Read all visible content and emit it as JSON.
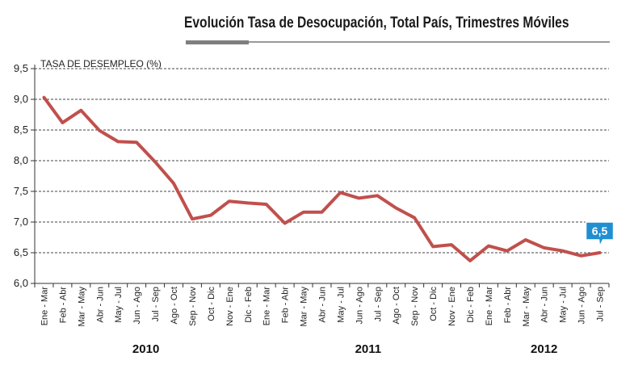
{
  "chart_data": {
    "type": "line",
    "title": "Evolución Tasa de Desocupación, Total País, Trimestres Móviles",
    "ylabel": "TASA DE DESEMPLEO (%)",
    "xlabel": "",
    "ylim": [
      6.0,
      9.5
    ],
    "y_ticks": [
      "6,0",
      "6,5",
      "7,0",
      "7,5",
      "8,0",
      "8,5",
      "9,0",
      "9,5"
    ],
    "grid": "horizontal-dashed",
    "line_color": "#c0504d",
    "accent_color": "#1f8fd1",
    "categories": [
      "Ene - Mar",
      "Feb - Abr",
      "Mar - May",
      "Abr - Jun",
      "May - Jul",
      "Jun - Ago",
      "Jul - Sep",
      "Ago - Oct",
      "Sep - Nov",
      "Oct - Dic",
      "Nov - Ene",
      "Dic - Feb",
      "Ene - Mar",
      "Feb - Abr",
      "Mar - May",
      "Abr - Jun",
      "May - Jul",
      "Jun - Ago",
      "Jul - Sep",
      "Ago - Oct",
      "Sep - Nov",
      "Oct - Dic",
      "Nov - Ene",
      "Dic - Feb",
      "Ene - Mar",
      "Feb - Abr",
      "Mar - May",
      "Abr - Jun",
      "May - Jul",
      "Jun - Ago",
      "Jul - Sep"
    ],
    "series": [
      {
        "values": [
          9.03,
          8.62,
          8.82,
          8.49,
          8.31,
          8.3,
          7.98,
          7.63,
          7.05,
          7.11,
          7.34,
          7.31,
          7.29,
          6.98,
          7.16,
          7.16,
          7.48,
          7.39,
          7.43,
          7.23,
          7.07,
          6.6,
          6.63,
          6.37,
          6.61,
          6.53,
          6.71,
          6.58,
          6.53,
          6.45,
          6.5
        ]
      }
    ],
    "years": [
      {
        "label": "2010",
        "start": 0,
        "end": 11
      },
      {
        "label": "2011",
        "start": 12,
        "end": 23
      },
      {
        "label": "2012",
        "start": 24,
        "end": 30
      }
    ],
    "annotation": {
      "text": "6,5",
      "index": 30
    }
  }
}
